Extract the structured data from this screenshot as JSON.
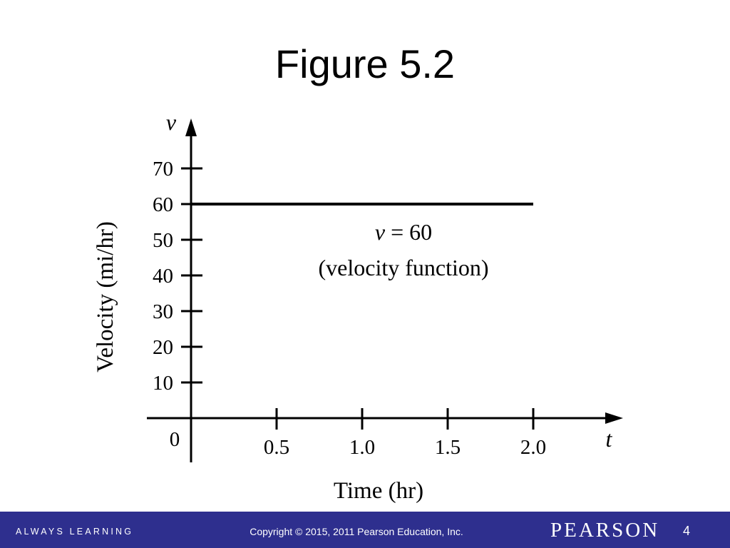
{
  "slide": {
    "title": "Figure 5.2"
  },
  "footer": {
    "tagline": "ALWAYS LEARNING",
    "copyright": "Copyright © 2015, 2011 Pearson Education, Inc.",
    "brand": "PEARSON",
    "page_number": "4",
    "background_color": "#2e2f8e"
  },
  "chart_data": {
    "type": "line",
    "x_axis_symbol": "t",
    "y_axis_symbol": "v",
    "xlabel": "Time (hr)",
    "ylabel": "Velocity (mi/hr)",
    "xlim": [
      0,
      2.5
    ],
    "ylim": [
      0,
      80
    ],
    "x_ticks": [
      0.5,
      1.0,
      1.5,
      2.0
    ],
    "x_tick_labels": [
      "0.5",
      "1.0",
      "1.5",
      "2.0"
    ],
    "y_ticks": [
      10,
      20,
      30,
      40,
      50,
      60,
      70
    ],
    "y_tick_labels": [
      "10",
      "20",
      "30",
      "40",
      "50",
      "60",
      "70"
    ],
    "origin_label": "0",
    "series": [
      {
        "x": [
          0,
          2.0
        ],
        "y": [
          60,
          60
        ]
      }
    ],
    "annotation": {
      "line1_var": "v",
      "line1_rest": " = 60",
      "line2": "(velocity function)"
    },
    "grid": false
  }
}
